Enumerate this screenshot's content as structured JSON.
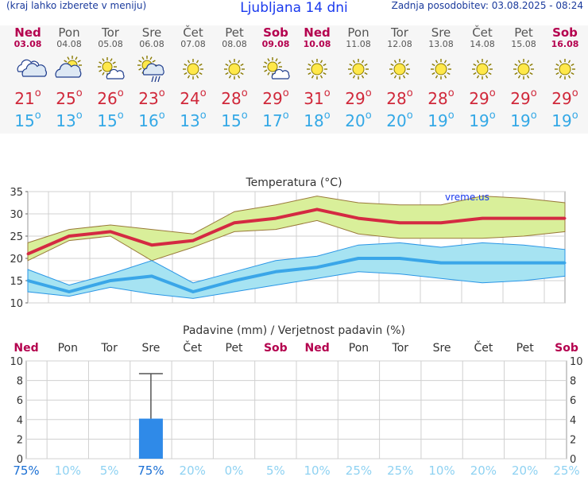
{
  "header": {
    "left_note": "(kraj lahko izberete v meniju)",
    "title": "Ljubljana 14 dni",
    "last_update": "Zadnja posodobitev: 03.08.2025 - 08:24"
  },
  "days": [
    {
      "name": "Ned",
      "date": "03.08",
      "weekend": true,
      "icon": "cloudy-icon",
      "tmax": "21",
      "tmin": "15",
      "precip_prob": "75%"
    },
    {
      "name": "Pon",
      "date": "04.08",
      "weekend": false,
      "icon": "partly-cloudy-icon",
      "tmax": "25",
      "tmin": "13",
      "precip_prob": "10%"
    },
    {
      "name": "Tor",
      "date": "05.08",
      "weekend": false,
      "icon": "sun-cloud-icon",
      "tmax": "26",
      "tmin": "15",
      "precip_prob": "5%"
    },
    {
      "name": "Sre",
      "date": "06.08",
      "weekend": false,
      "icon": "sun-rain-icon",
      "tmax": "23",
      "tmin": "16",
      "precip_prob": "75%"
    },
    {
      "name": "Čet",
      "date": "07.08",
      "weekend": false,
      "icon": "sun-icon",
      "tmax": "24",
      "tmin": "13",
      "precip_prob": "20%"
    },
    {
      "name": "Pet",
      "date": "08.08",
      "weekend": false,
      "icon": "sun-icon",
      "tmax": "28",
      "tmin": "15",
      "precip_prob": "0%"
    },
    {
      "name": "Sob",
      "date": "09.08",
      "weekend": true,
      "icon": "sun-cloud-icon",
      "tmax": "29",
      "tmin": "17",
      "precip_prob": "5%"
    },
    {
      "name": "Ned",
      "date": "10.08",
      "weekend": true,
      "icon": "sun-icon",
      "tmax": "31",
      "tmin": "18",
      "precip_prob": "10%"
    },
    {
      "name": "Pon",
      "date": "11.08",
      "weekend": false,
      "icon": "sun-icon",
      "tmax": "29",
      "tmin": "20",
      "precip_prob": "25%"
    },
    {
      "name": "Tor",
      "date": "12.08",
      "weekend": false,
      "icon": "sun-icon",
      "tmax": "28",
      "tmin": "20",
      "precip_prob": "25%"
    },
    {
      "name": "Sre",
      "date": "13.08",
      "weekend": false,
      "icon": "sun-icon",
      "tmax": "28",
      "tmin": "19",
      "precip_prob": "10%"
    },
    {
      "name": "Čet",
      "date": "14.08",
      "weekend": false,
      "icon": "sun-icon",
      "tmax": "29",
      "tmin": "19",
      "precip_prob": "20%"
    },
    {
      "name": "Pet",
      "date": "15.08",
      "weekend": false,
      "icon": "sun-icon",
      "tmax": "29",
      "tmin": "19",
      "precip_prob": "20%"
    },
    {
      "name": "Sob",
      "date": "16.08",
      "weekend": true,
      "icon": "sun-icon",
      "tmax": "29",
      "tmin": "19",
      "precip_prob": "25%"
    }
  ],
  "degree_symbol": "o",
  "chart_data": [
    {
      "type": "line",
      "title": "Temperatura (°C)",
      "watermark": "vreme.us",
      "ylim": [
        10,
        35
      ],
      "yticks": [
        "35",
        "30",
        "25",
        "20",
        "15",
        "10"
      ],
      "x": [
        0,
        1,
        2,
        3,
        4,
        5,
        6,
        7,
        8,
        9,
        10,
        11,
        12,
        13
      ],
      "series": [
        {
          "name": "max_mean",
          "color": "#d42a42",
          "values": [
            21,
            25,
            26,
            23,
            24,
            28,
            29,
            31,
            29,
            28,
            28,
            29,
            29,
            29
          ]
        },
        {
          "name": "max_upper",
          "values": [
            23.5,
            26.5,
            27.5,
            26.5,
            25.5,
            30.5,
            32,
            34,
            32.5,
            32,
            32,
            34,
            33.5,
            32.5
          ]
        },
        {
          "name": "max_lower",
          "values": [
            19.5,
            24,
            25,
            19.5,
            22.5,
            26,
            26.5,
            28.5,
            25.5,
            24.5,
            24.5,
            24.5,
            25,
            26
          ]
        },
        {
          "name": "min_mean",
          "color": "#3aa6e8",
          "values": [
            15,
            12.5,
            15,
            16,
            12.5,
            15,
            17,
            18,
            20,
            20,
            19,
            19,
            19,
            19
          ]
        },
        {
          "name": "min_upper",
          "values": [
            17.5,
            14,
            16.5,
            19.5,
            14.5,
            17,
            19.5,
            20.5,
            23,
            23.5,
            22.5,
            23.5,
            23,
            22
          ]
        },
        {
          "name": "min_lower",
          "values": [
            12.5,
            11.5,
            13.5,
            12,
            11,
            12.5,
            14,
            15.5,
            17,
            16.5,
            15.5,
            14.5,
            15,
            16
          ]
        }
      ]
    },
    {
      "type": "bar",
      "title": "Padavine (mm) / Verjetnost padavin (%)",
      "ylim": [
        0,
        10
      ],
      "yticks": [
        "10",
        "8",
        "6",
        "4",
        "2",
        "0"
      ],
      "categories": [
        "Ned",
        "Pon",
        "Tor",
        "Sre",
        "Čet",
        "Pet",
        "Sob",
        "Ned",
        "Pon",
        "Tor",
        "Sre",
        "Čet",
        "Pet",
        "Sob"
      ],
      "weekend": [
        true,
        false,
        false,
        false,
        false,
        false,
        true,
        true,
        false,
        false,
        false,
        false,
        false,
        true
      ],
      "values": [
        0,
        0,
        0,
        4.1,
        0,
        0,
        0,
        0,
        0,
        0,
        0,
        0,
        0,
        0
      ],
      "error_upper": [
        0,
        0,
        0,
        8.7,
        0,
        0,
        0,
        0,
        0,
        0,
        0,
        0,
        0,
        0
      ],
      "bar_color": "#2f8ae8",
      "probabilities": [
        "75%",
        "10%",
        "5%",
        "75%",
        "20%",
        "0%",
        "5%",
        "10%",
        "25%",
        "25%",
        "10%",
        "20%",
        "20%",
        "25%"
      ]
    }
  ]
}
